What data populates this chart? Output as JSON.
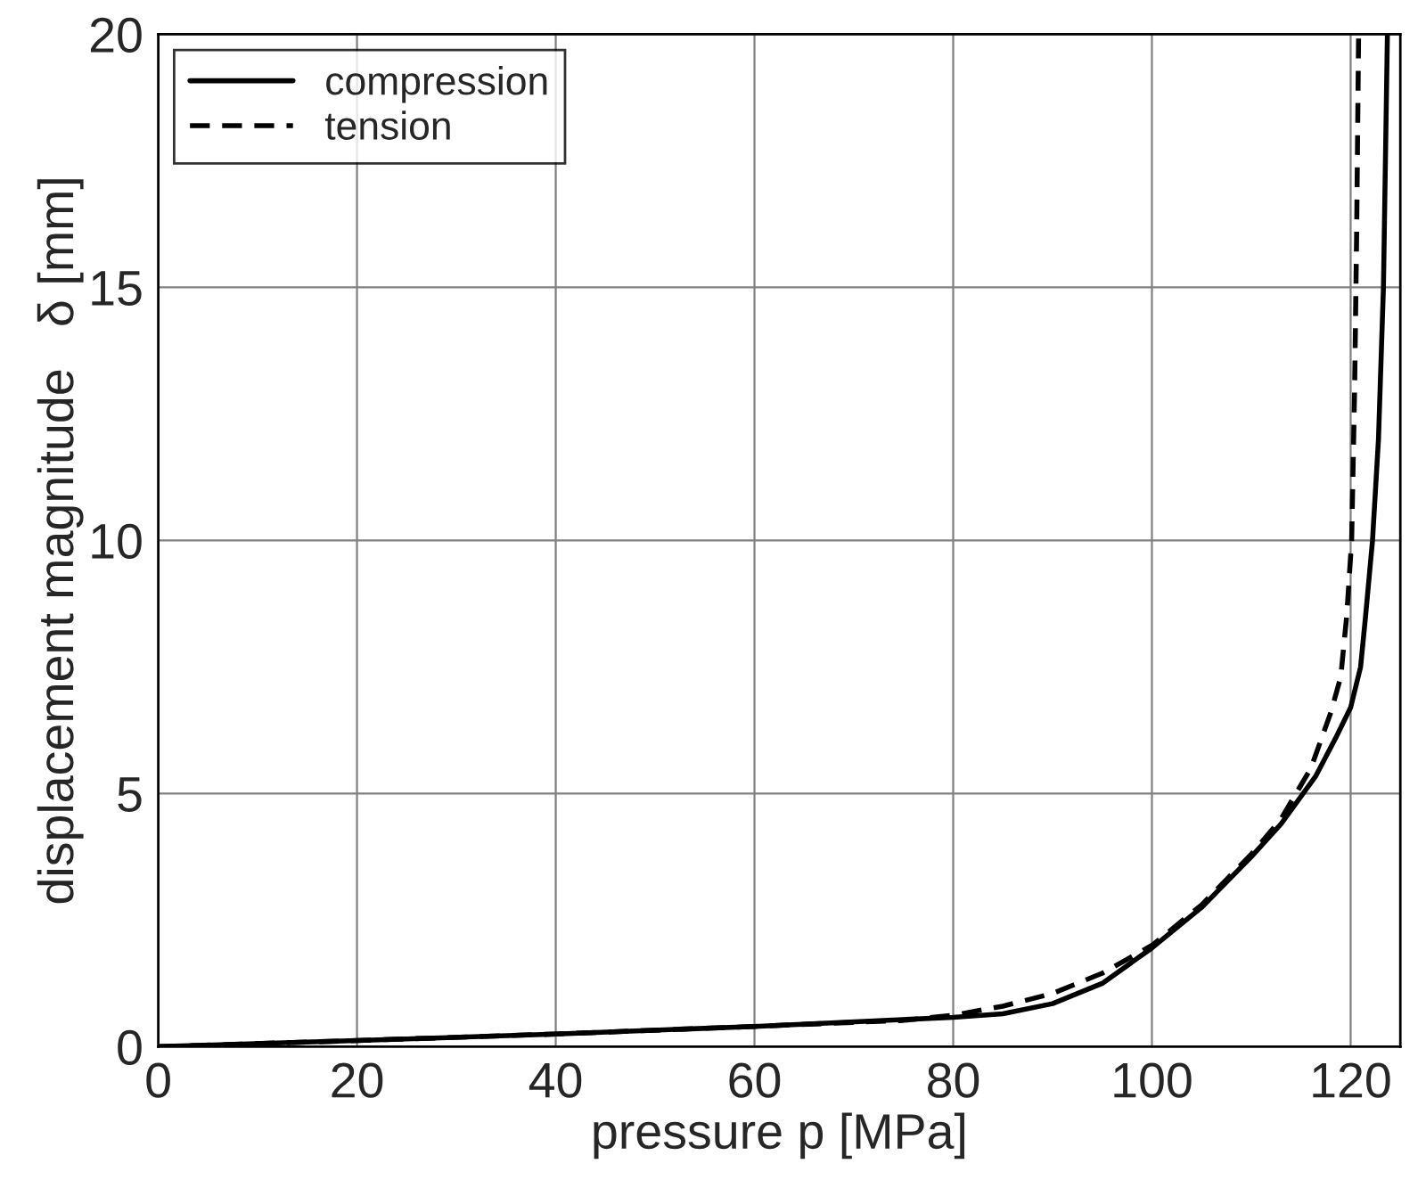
{
  "chart_data": {
    "type": "line",
    "xlabel": "pressure p [MPa]",
    "ylabel": "displacement magnitude   δ [mm]",
    "xlim": [
      0,
      125
    ],
    "ylim": [
      0,
      20
    ],
    "xticks": [
      0,
      20,
      40,
      60,
      80,
      100,
      120
    ],
    "yticks": [
      0,
      5,
      10,
      15,
      20
    ],
    "grid": true,
    "legend": "top left",
    "series": [
      {
        "name": "compression",
        "color": "#000000",
        "line_style": "solid",
        "x": [
          0,
          20,
          40,
          60,
          80,
          85,
          90,
          95,
          100,
          105,
          110,
          113,
          116.5,
          118.5,
          120,
          121,
          121.5,
          122.2,
          122.8,
          123.3,
          123.7
        ],
        "values": [
          0,
          0.12,
          0.25,
          0.4,
          0.58,
          0.65,
          0.85,
          1.25,
          1.95,
          2.75,
          3.75,
          4.4,
          5.35,
          6.1,
          6.7,
          7.5,
          8.5,
          10,
          12,
          15,
          20
        ]
      },
      {
        "name": "tension",
        "color": "#000000",
        "line_style": "dashed",
        "x": [
          0,
          20,
          40,
          60,
          75,
          80,
          85,
          90,
          95,
          100,
          105,
          110,
          113,
          116,
          118,
          119,
          119.6,
          120.1,
          120.4,
          120.6,
          120.8
        ],
        "values": [
          0,
          0.12,
          0.25,
          0.4,
          0.52,
          0.62,
          0.8,
          1.05,
          1.45,
          2.0,
          2.8,
          3.8,
          4.5,
          5.5,
          6.6,
          7.3,
          8.5,
          10,
          13,
          16,
          20
        ]
      }
    ]
  }
}
